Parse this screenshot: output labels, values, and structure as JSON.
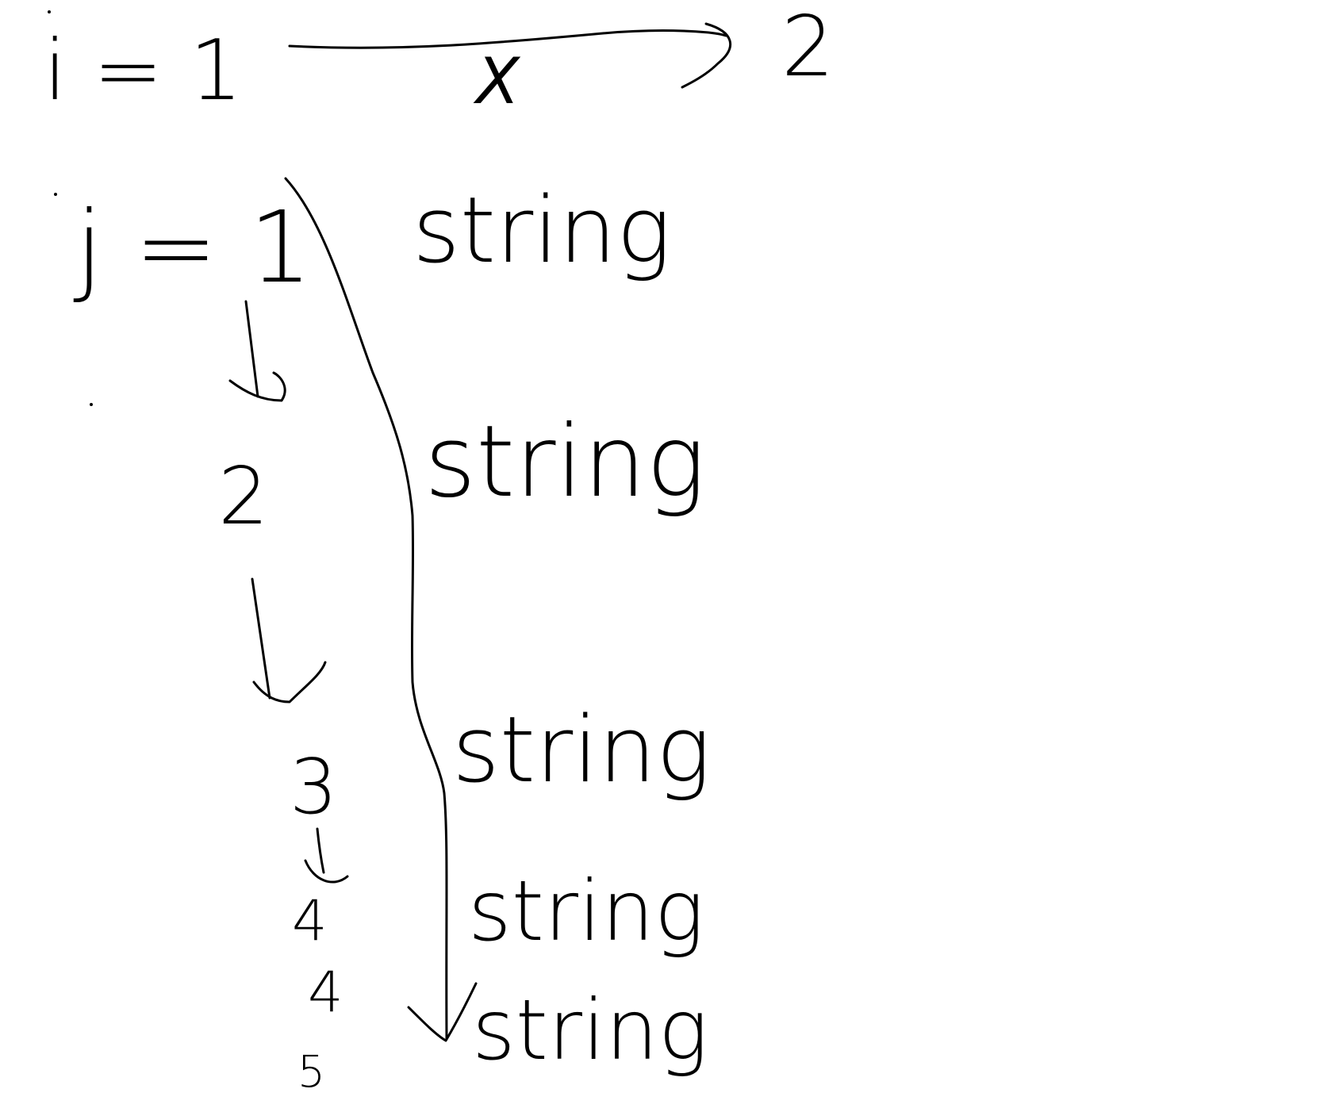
{
  "whiteboard": {
    "ink_color": "#000000",
    "background_color": "#ffffff",
    "outer_loop": {
      "label": "i = 1",
      "next_value": "2",
      "skip_mark": "X"
    },
    "inner_loop": {
      "label": "j = 1",
      "steps": [
        "2",
        "3",
        "4",
        "4",
        "5"
      ]
    },
    "string_labels": [
      "string",
      "string",
      "string",
      "string",
      "string"
    ]
  }
}
